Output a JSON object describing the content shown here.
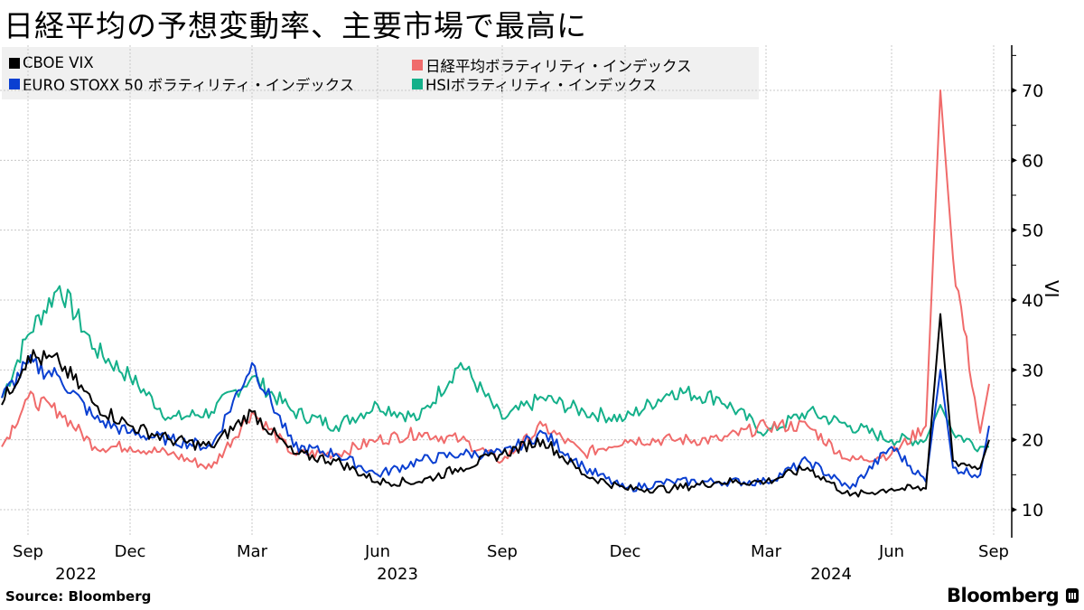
{
  "title": "日経平均の予想変動率、主要市場で最高に",
  "legend": [
    {
      "label": "CBOE VIX",
      "color": "#000000"
    },
    {
      "label": "EURO STOXX 50 ボラティリティ・インデックス",
      "color": "#0a3fd1"
    },
    {
      "label": "日経平均ボラティリティ・インデックス",
      "color": "#f06b6b"
    },
    {
      "label": "HSIボラティリティ・インデックス",
      "color": "#14b08a"
    }
  ],
  "y_axis": {
    "label": "VI",
    "ticks": [
      "10",
      "20",
      "30",
      "40",
      "50",
      "60",
      "70"
    ]
  },
  "x_axis": {
    "months": [
      "Sep",
      "Dec",
      "Mar",
      "Jun",
      "Sep",
      "Dec",
      "Mar",
      "Jun",
      "Sep"
    ],
    "years": [
      "2022",
      "2023",
      "2024"
    ]
  },
  "footer": {
    "source": "Source:  Bloomberg",
    "brand": "Bloomberg"
  },
  "chart_data": {
    "type": "line",
    "title": "日経平均の予想変動率、主要市場で最高に",
    "xlabel": "",
    "ylabel": "VI",
    "ylim": [
      7,
      76
    ],
    "grid": true,
    "legend_position": "top-left",
    "x": [
      "2022-08",
      "2022-09",
      "2022-10",
      "2022-11",
      "2022-12",
      "2023-01",
      "2023-02",
      "2023-03",
      "2023-04",
      "2023-05",
      "2023-06",
      "2023-07",
      "2023-08",
      "2023-09",
      "2023-10",
      "2023-11",
      "2023-12",
      "2024-01",
      "2024-02",
      "2024-03",
      "2024-04",
      "2024-05",
      "2024-06",
      "2024-07",
      "2024-08-05",
      "2024-08-15",
      "2024-08-30",
      "2024-09"
    ],
    "series": [
      {
        "name": "CBOE VIX",
        "color": "#000000",
        "values": [
          25,
          32,
          31,
          25,
          22,
          20,
          19,
          24,
          18,
          17,
          14,
          14,
          16,
          18,
          20,
          15,
          13,
          13,
          14,
          14,
          16,
          12,
          13,
          13,
          38,
          17,
          16,
          20
        ]
      },
      {
        "name": "EURO STOXX 50 ボラティリティ・インデックス",
        "color": "#0a3fd1",
        "values": [
          26,
          31,
          29,
          23,
          21,
          20,
          19,
          31,
          19,
          18,
          15,
          17,
          18,
          18,
          21,
          16,
          13,
          14,
          14,
          14,
          17,
          13,
          19,
          14,
          30,
          16,
          15,
          22
        ]
      },
      {
        "name": "日経平均ボラティリティ・インデックス",
        "color": "#f06b6b",
        "values": [
          19,
          26,
          24,
          19,
          19,
          18,
          16,
          24,
          18,
          18,
          20,
          21,
          20,
          17,
          22,
          18,
          20,
          20,
          20,
          22,
          22,
          17,
          18,
          22,
          70,
          46,
          21,
          28
        ]
      },
      {
        "name": "HSIボラティリティ・インデックス",
        "color": "#14b08a",
        "values": [
          26,
          35,
          42,
          33,
          29,
          23,
          24,
          29,
          24,
          22,
          25,
          23,
          31,
          23,
          26,
          24,
          23,
          27,
          26,
          21,
          24,
          22,
          20,
          20,
          25,
          21,
          19,
          19
        ]
      }
    ]
  }
}
